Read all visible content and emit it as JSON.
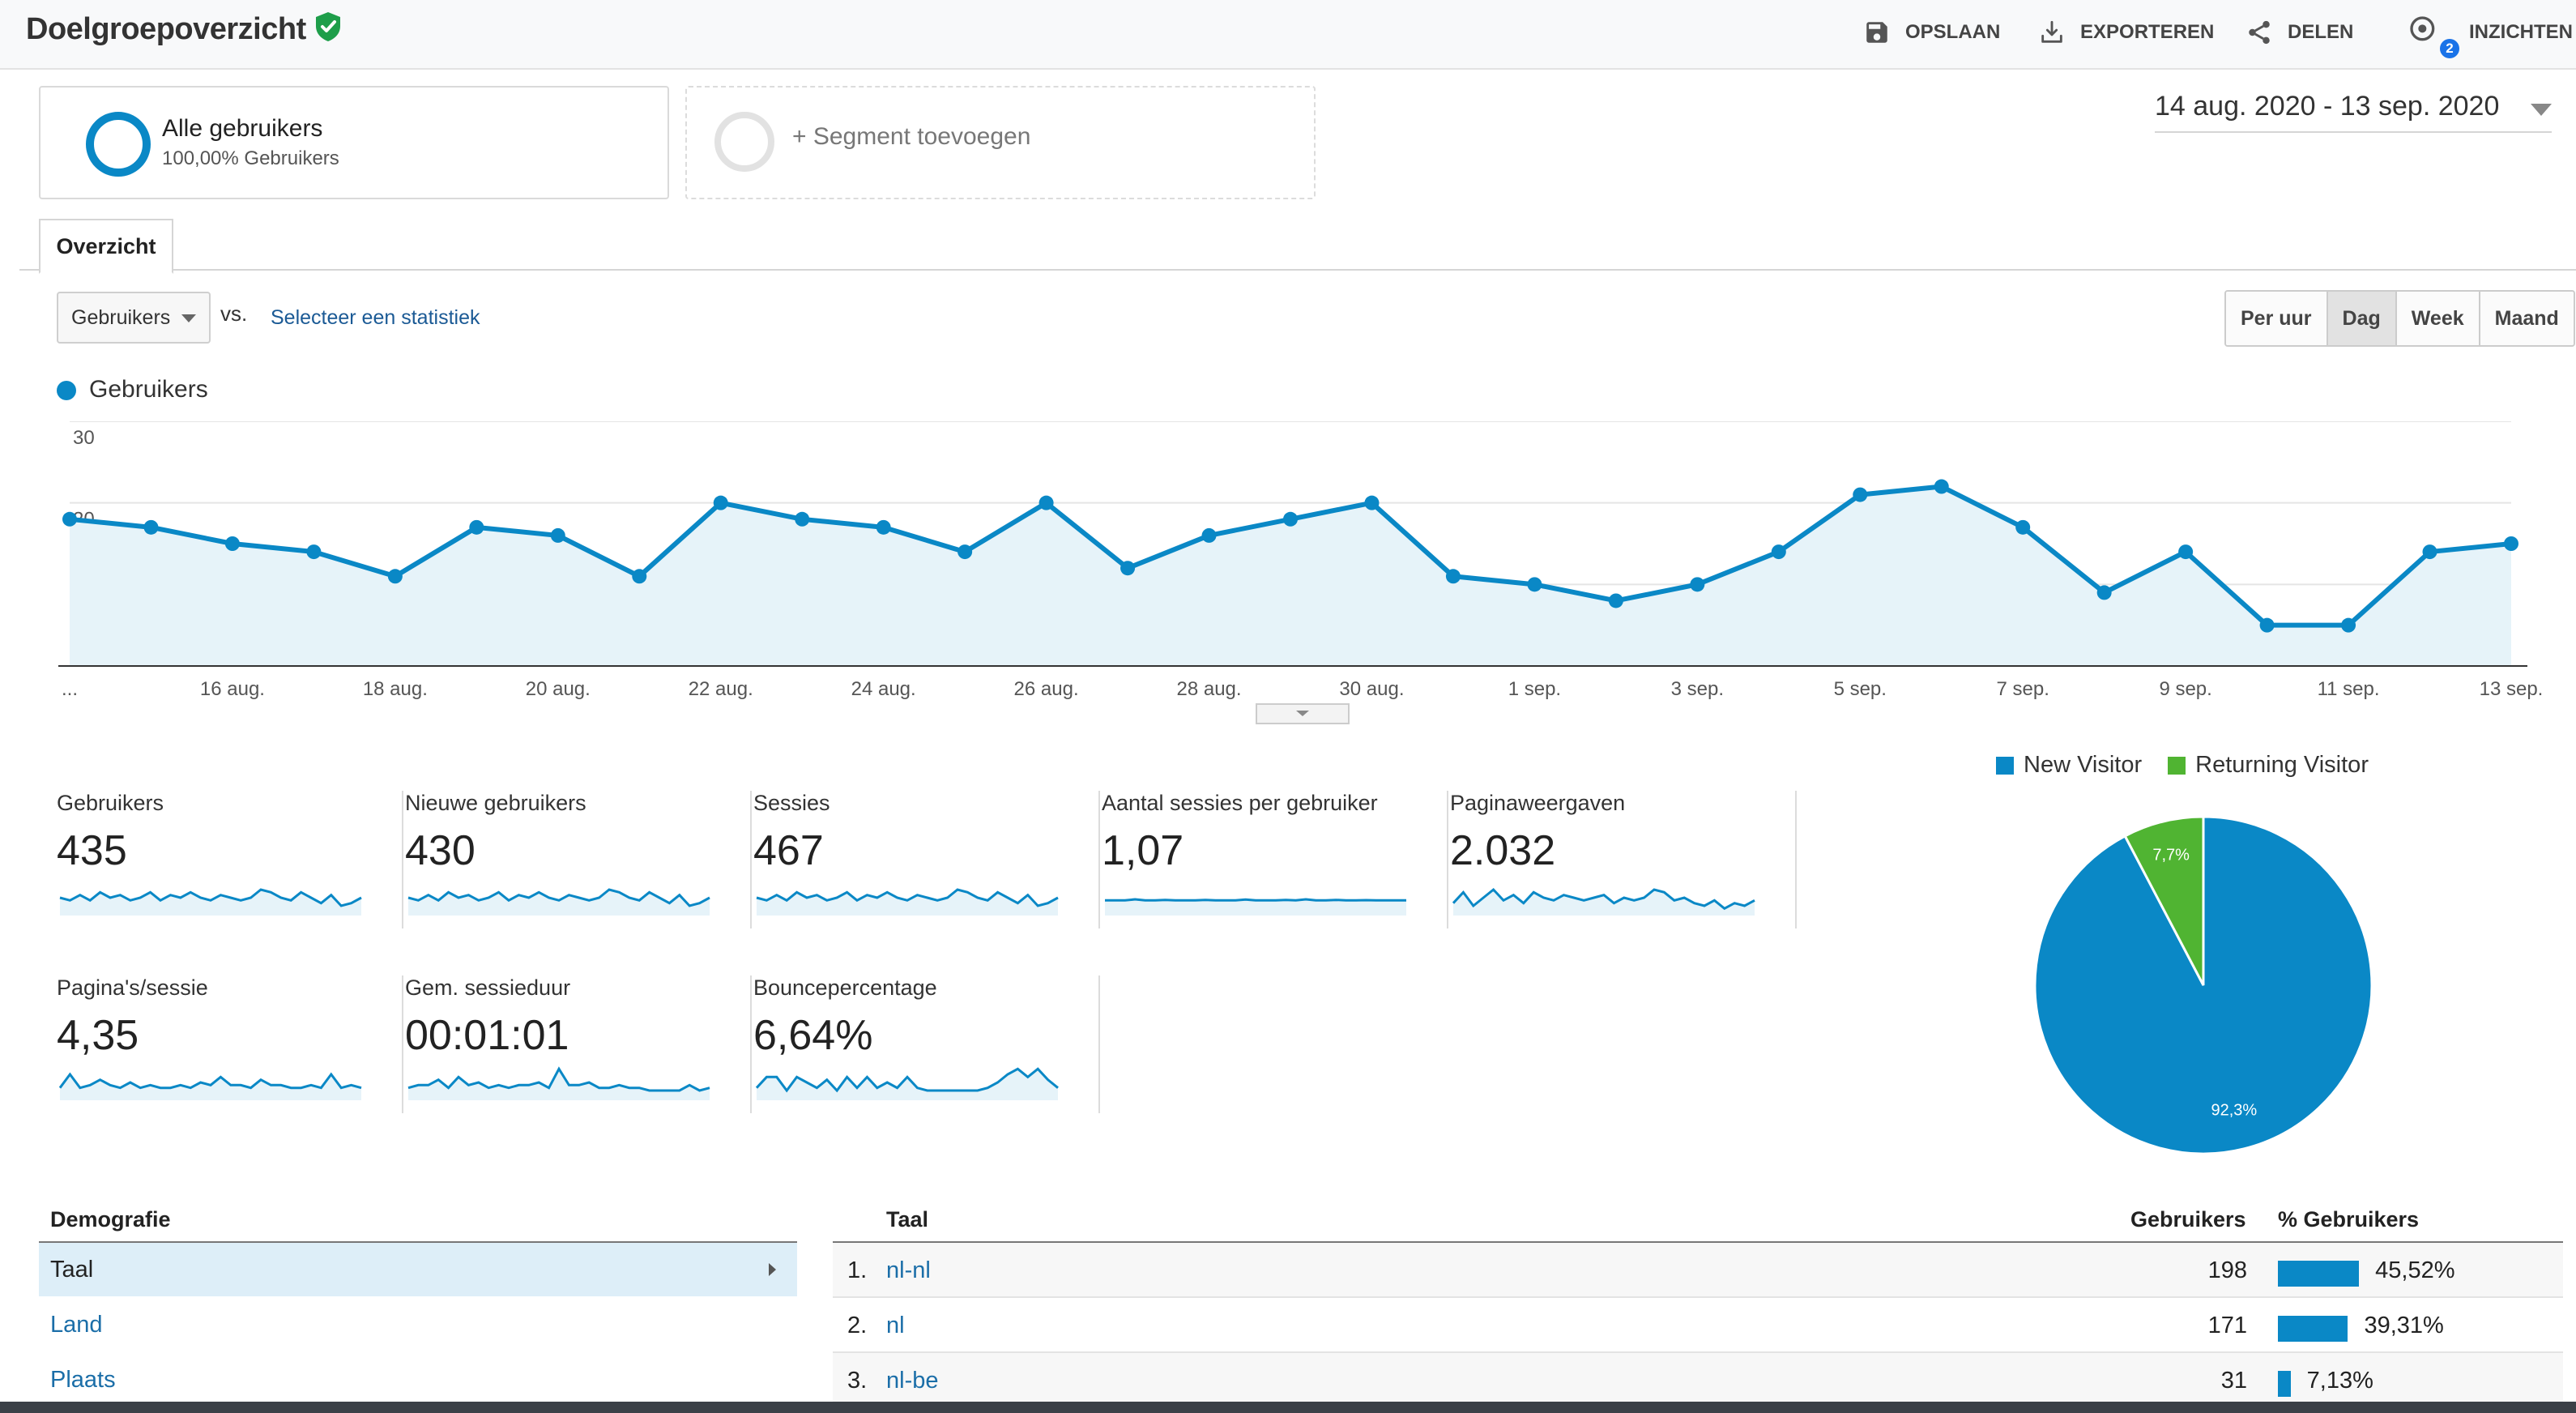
{
  "header": {
    "title": "Doelgroepoverzicht",
    "actions": [
      {
        "label": "OPSLAAN",
        "icon": "save-icon"
      },
      {
        "label": "EXPORTEREN",
        "icon": "download-icon"
      },
      {
        "label": "DELEN",
        "icon": "share-icon"
      },
      {
        "label": "INZICHTEN",
        "icon": "insights-icon",
        "badge": "2"
      }
    ]
  },
  "segments": {
    "active": {
      "title": "Alle gebruikers",
      "subtitle": "100,00% Gebruikers"
    },
    "add_label": "+ Segment toevoegen"
  },
  "date_range": "14 aug. 2020 - 13 sep. 2020",
  "tabs": {
    "overview": "Overzicht"
  },
  "controls": {
    "metric": "Gebruikers",
    "vs": "vs.",
    "compare_link": "Selecteer een statistiek",
    "granularity": [
      "Per uur",
      "Dag",
      "Week",
      "Maand"
    ],
    "granularity_active": "Dag"
  },
  "chart_data": {
    "type": "area",
    "series_name": "Gebruikers",
    "y_ticks": [
      "30",
      "20",
      "10"
    ],
    "ylim": [
      0,
      30
    ],
    "x_tick_labels": [
      "...",
      "16 aug.",
      "18 aug.",
      "20 aug.",
      "22 aug.",
      "24 aug.",
      "26 aug.",
      "28 aug.",
      "30 aug.",
      "1 sep.",
      "3 sep.",
      "5 sep.",
      "7 sep.",
      "9 sep.",
      "11 sep.",
      "13 sep."
    ],
    "values": [
      18,
      17,
      15,
      14,
      11,
      17,
      16,
      11,
      20,
      18,
      17,
      14,
      20,
      12,
      16,
      18,
      20,
      11,
      10,
      8,
      10,
      14,
      21,
      22,
      17,
      9,
      14,
      5,
      5,
      14,
      15
    ],
    "color": "#0a88c6",
    "fill": "#e6f3f9"
  },
  "metrics": [
    {
      "label": "Gebruikers",
      "value": "435",
      "spark": [
        6,
        5,
        7,
        5,
        8,
        6,
        7,
        5,
        6,
        8,
        5,
        7,
        6,
        8,
        6,
        5,
        7,
        6,
        5,
        6,
        9,
        8,
        6,
        5,
        8,
        6,
        4,
        7,
        3,
        4,
        6
      ]
    },
    {
      "label": "Nieuwe gebruikers",
      "value": "430",
      "spark": [
        6,
        5,
        7,
        5,
        8,
        6,
        7,
        5,
        6,
        8,
        5,
        7,
        6,
        8,
        6,
        5,
        7,
        6,
        5,
        6,
        9,
        8,
        6,
        5,
        8,
        6,
        4,
        7,
        3,
        4,
        6
      ]
    },
    {
      "label": "Sessies",
      "value": "467",
      "spark": [
        6,
        5,
        7,
        5,
        8,
        6,
        7,
        5,
        6,
        8,
        5,
        7,
        6,
        8,
        6,
        5,
        7,
        6,
        5,
        6,
        9,
        8,
        6,
        5,
        8,
        6,
        4,
        7,
        3,
        4,
        6
      ]
    },
    {
      "label": "Aantal sessies per gebruiker",
      "value": "1,07",
      "spark": [
        5,
        5,
        5,
        5.4,
        5,
        5,
        5.2,
        5,
        5,
        5,
        5.2,
        5,
        5,
        5,
        5.3,
        5,
        5,
        5,
        5.2,
        5,
        5.4,
        5,
        5,
        5.2,
        5,
        5,
        5.1,
        5,
        5,
        5,
        5
      ]
    },
    {
      "label": "Paginaweergaven",
      "value": "2.032",
      "spark": [
        4,
        8,
        3,
        6,
        9,
        5,
        7,
        4,
        8,
        6,
        5,
        7,
        6,
        5,
        6,
        7,
        4,
        6,
        5,
        6,
        9,
        8,
        5,
        6,
        4,
        3,
        5,
        2,
        4,
        3,
        5
      ]
    },
    {
      "label": "Pagina's/sessie",
      "value": "4,35",
      "spark": [
        4,
        9,
        4,
        5,
        7,
        5,
        4,
        6,
        4,
        5,
        4,
        4,
        5,
        4,
        6,
        5,
        8,
        5,
        5,
        4,
        7,
        5,
        5,
        4,
        4,
        5,
        4,
        9,
        4,
        5,
        4
      ]
    },
    {
      "label": "Gem. sessieduur",
      "value": "00:01:01",
      "spark": [
        4,
        5,
        5,
        7,
        4,
        8,
        5,
        6,
        4,
        5,
        4,
        5,
        5,
        6,
        4,
        11,
        5,
        5,
        6,
        4,
        4,
        5,
        4,
        4,
        3,
        3,
        3,
        3,
        5,
        3,
        4
      ]
    },
    {
      "label": "Bouncepercentage",
      "value": "6,64%",
      "spark": [
        4,
        8,
        8,
        3,
        8,
        6,
        4,
        7,
        3,
        8,
        4,
        8,
        4,
        6,
        4,
        8,
        4,
        3,
        3,
        3,
        3,
        3,
        3,
        4,
        6,
        9,
        11,
        8,
        11,
        7,
        4
      ]
    }
  ],
  "pie": {
    "legend": [
      {
        "label": "New Visitor",
        "color": "#0a88c6"
      },
      {
        "label": "Returning Visitor",
        "color": "#50b432"
      }
    ],
    "slices": [
      {
        "label": "92,3%",
        "value": 92.3,
        "color": "#0a88c6"
      },
      {
        "label": "7,7%",
        "value": 7.7,
        "color": "#50b432"
      }
    ]
  },
  "demografie": {
    "heading": "Demografie",
    "items": [
      "Taal",
      "Land",
      "Plaats"
    ]
  },
  "table": {
    "headers": {
      "dimension": "Taal",
      "users": "Gebruikers",
      "pct": "% Gebruikers"
    },
    "rows": [
      {
        "n": "1.",
        "lang": "nl-nl",
        "users": "198",
        "pct": "45,52%",
        "share": 45.52
      },
      {
        "n": "2.",
        "lang": "nl",
        "users": "171",
        "pct": "39,31%",
        "share": 39.31
      },
      {
        "n": "3.",
        "lang": "nl-be",
        "users": "31",
        "pct": "7,13%",
        "share": 7.13
      }
    ]
  }
}
